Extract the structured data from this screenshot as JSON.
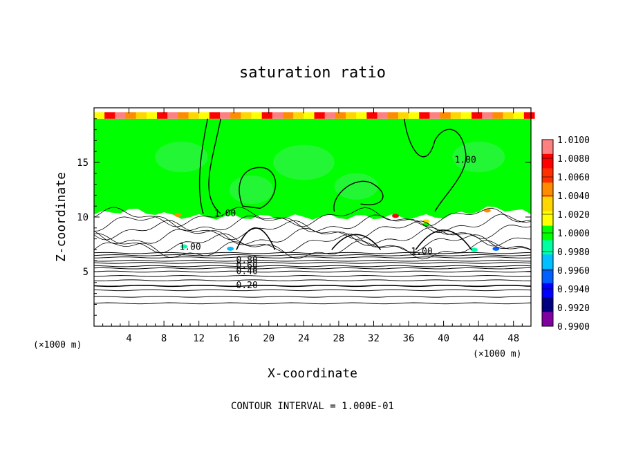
{
  "chart_data": {
    "type": "heatmap",
    "title": "saturation ratio",
    "xlabel": "X-coordinate",
    "ylabel": "Z-coordinate",
    "x_unit": "(×1000 m)",
    "z_unit": "(×1000 m)",
    "xlim": [
      0,
      50
    ],
    "ylim": [
      0,
      20
    ],
    "x_ticks": [
      4,
      8,
      12,
      16,
      20,
      24,
      28,
      32,
      36,
      40,
      44,
      48
    ],
    "y_ticks": [
      5,
      10,
      15
    ],
    "colorbar": {
      "levels": [
        "1.0100",
        "1.0080",
        "1.0060",
        "1.0040",
        "1.0020",
        "1.0000",
        "0.9980",
        "0.9960",
        "0.9940",
        "0.9920",
        "0.9900"
      ],
      "colors": [
        "#ff8080",
        "#ff0000",
        "#ff3000",
        "#ff8c00",
        "#ffd700",
        "#ffff00",
        "#00ff00",
        "#00ffa0",
        "#00c0ff",
        "#0060ff",
        "#0000ff",
        "#000080",
        "#8000a0"
      ]
    },
    "contour_levels_z": [
      {
        "label": "0.20",
        "z": 3.7
      },
      {
        "label": "0.40",
        "z": 5.0
      },
      {
        "label": "0.60",
        "z": 5.5
      },
      {
        "label": "0.80",
        "z": 6.0
      },
      {
        "label": "1.00",
        "z": 7.0
      }
    ],
    "contour_labels": [
      {
        "text": "1.00",
        "x": 42.5,
        "z": 15.2
      },
      {
        "text": "1.00",
        "x": 15.0,
        "z": 10.3
      },
      {
        "text": "1.00",
        "x": 11.0,
        "z": 7.2
      },
      {
        "text": "1.00",
        "x": 37.5,
        "z": 6.8
      },
      {
        "text": "0.80",
        "x": 17.5,
        "z": 6.0
      },
      {
        "text": "0.60",
        "x": 17.5,
        "z": 5.5
      },
      {
        "text": "0.40",
        "x": 17.5,
        "z": 5.0
      },
      {
        "text": "0.20",
        "x": 17.5,
        "z": 3.7
      }
    ],
    "saturated_region": {
      "z_bottom": 10.0,
      "z_top": 19.0
    },
    "footer": "CONTOUR INTERVAL = 1.000E-01"
  }
}
